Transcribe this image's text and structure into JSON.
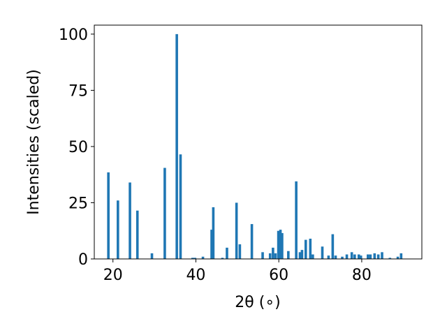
{
  "chart_data": {
    "type": "bar",
    "title": "",
    "xlabel": "2θ (∘)",
    "ylabel": "Intensities (scaled)",
    "xlim": [
      15.5,
      94.5
    ],
    "ylim": [
      0,
      104
    ],
    "xticks": [
      20,
      40,
      60,
      80
    ],
    "yticks": [
      0,
      25,
      50,
      75,
      100
    ],
    "grid": false,
    "bar_color": "#1f77b4",
    "series": [
      {
        "x": [
          18.9,
          21.2,
          24.1,
          25.9,
          29.4,
          32.5,
          35.4,
          36.3,
          39.2,
          39.8,
          41.7,
          43.8,
          44.2,
          46.4,
          47.5,
          49.8,
          50.6,
          53.5,
          56.1,
          57.9,
          58.6,
          59.2,
          59.9,
          60.4,
          60.8,
          62.3,
          64.2,
          65.1,
          65.6,
          66.5,
          67.6,
          68.2,
          70.5,
          72.0,
          73.0,
          73.7,
          75.3,
          76.4,
          77.6,
          78.3,
          79.3,
          79.8,
          81.5,
          82.1,
          83.1,
          84.0,
          84.9,
          86.8,
          88.7,
          89.5
        ],
        "y": [
          38.5,
          26.0,
          34.0,
          21.5,
          2.5,
          40.5,
          100.0,
          46.5,
          0.5,
          0.5,
          1.0,
          13.0,
          23.0,
          0.5,
          5.0,
          25.0,
          6.5,
          15.5,
          3.0,
          2.5,
          5.0,
          2.5,
          12.5,
          13.0,
          11.5,
          3.5,
          34.5,
          3.0,
          4.0,
          8.5,
          9.0,
          2.0,
          5.5,
          1.5,
          11.0,
          1.5,
          1.0,
          2.0,
          3.0,
          2.0,
          2.0,
          1.5,
          2.0,
          2.0,
          2.5,
          2.0,
          3.0,
          0.5,
          1.0,
          2.5
        ]
      }
    ]
  }
}
